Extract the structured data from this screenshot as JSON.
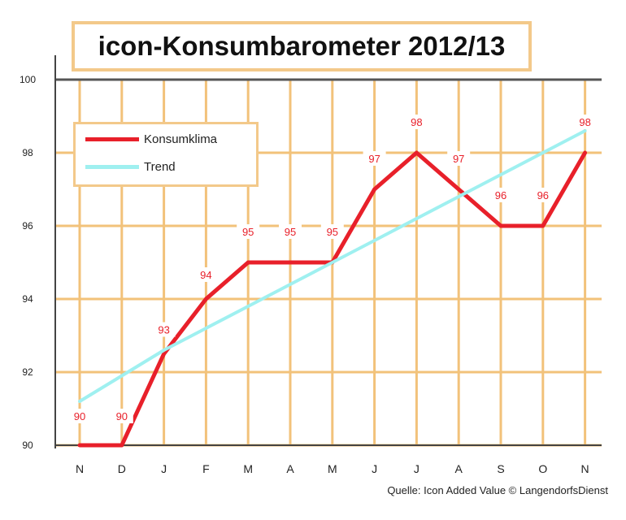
{
  "chart_data": {
    "type": "line",
    "title": "icon-Konsumbarometer 2012/13",
    "categories": [
      "N",
      "D",
      "J",
      "F",
      "M",
      "A",
      "M",
      "J",
      "J",
      "A",
      "S",
      "O",
      "N"
    ],
    "ylim": [
      90,
      100
    ],
    "yticks": [
      90,
      92,
      94,
      96,
      98,
      100
    ],
    "grid": true,
    "legend_position": "top-left",
    "series": [
      {
        "name": "Konsumklima",
        "color": "#e8202a",
        "values": [
          90,
          90,
          92.5,
          94,
          95,
          95,
          95,
          97,
          98,
          97,
          96,
          96,
          98
        ],
        "labels": [
          "90",
          "90",
          "93",
          "94",
          "95",
          "95",
          "95",
          "97",
          "98",
          "97",
          "96",
          "96",
          "98"
        ]
      },
      {
        "name": "Trend",
        "color": "#9ff0f0",
        "values": [
          91.2,
          91.9,
          92.6,
          93.2,
          93.8,
          94.4,
          95.0,
          95.6,
          96.2,
          96.8,
          97.4,
          98.0,
          98.6
        ]
      }
    ],
    "source": "Quelle: Icon Added Value © LangendorfsDienst"
  }
}
